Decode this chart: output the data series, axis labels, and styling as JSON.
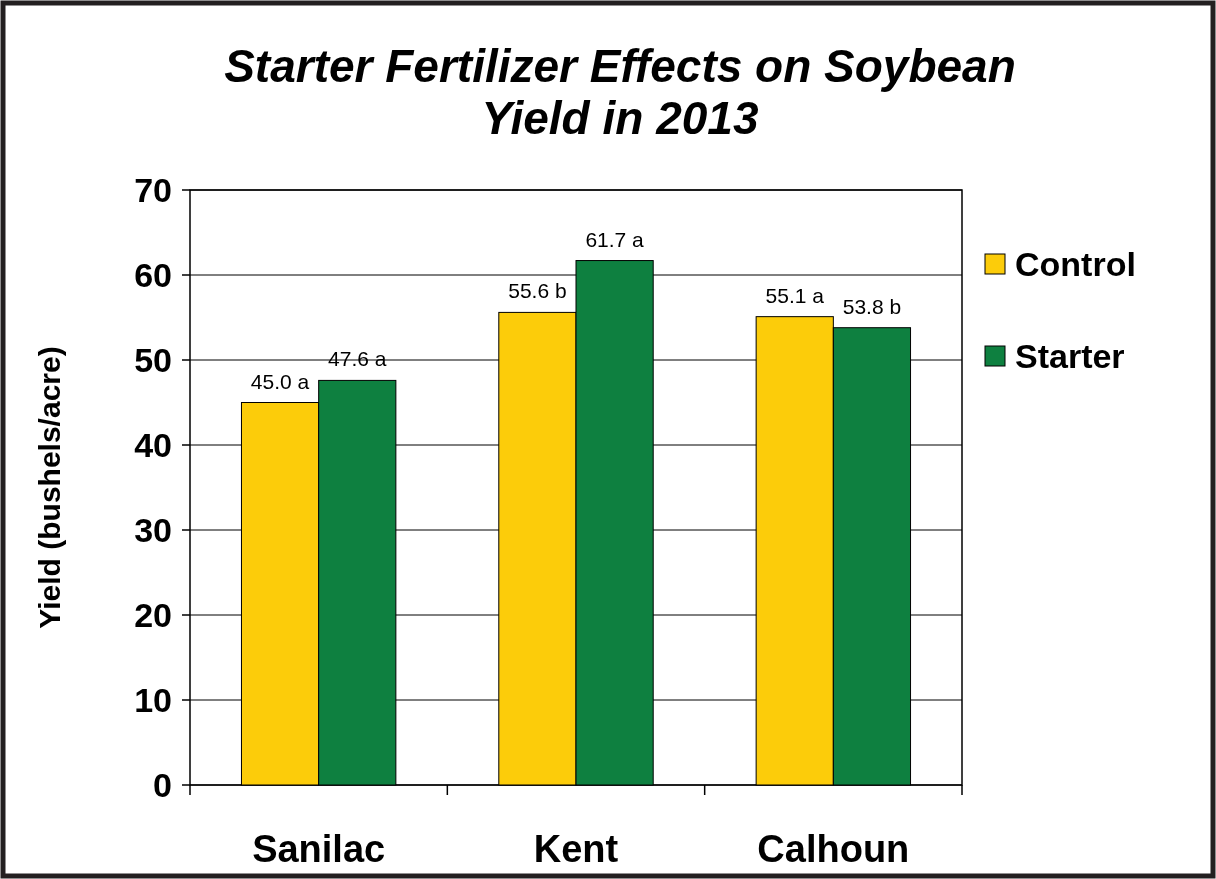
{
  "chart_data": {
    "type": "bar",
    "title": "Starter Fertilizer Effects on Soybean\nYield in 2013",
    "ylabel": "Yield (bushels/acre)",
    "categories": [
      "Sanilac",
      "Kent",
      "Calhoun"
    ],
    "series": [
      {
        "name": "Control",
        "color": "#fccc0a",
        "values": [
          45.0,
          55.6,
          55.1
        ],
        "value_labels": [
          "45.0 a",
          "55.6 b",
          "55.1 a"
        ]
      },
      {
        "name": "Starter",
        "color": "#0e8040",
        "values": [
          47.6,
          61.7,
          53.8
        ],
        "value_labels": [
          "47.6 a",
          "61.7 a",
          "53.8 b"
        ]
      }
    ],
    "ylim": [
      0,
      70
    ],
    "yticks": [
      0,
      10,
      20,
      30,
      40,
      50,
      60,
      70
    ],
    "grid": "y",
    "legend": "right"
  }
}
